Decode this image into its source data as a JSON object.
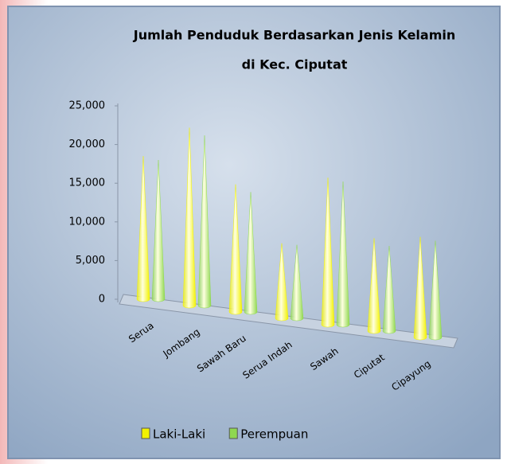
{
  "chart_data": {
    "type": "cone3d",
    "title": [
      "Jumlah Penduduk Berdasarkan  Jenis Kelamin",
      "di Kec. Ciputat"
    ],
    "categories": [
      "Serua",
      "Jombang",
      "Sawah Baru",
      "Serua Indah",
      "Sawah",
      "Ciputat",
      "Cipayung"
    ],
    "series": [
      {
        "name": "Laki-Laki",
        "color": "#f2f200",
        "values": [
          18500,
          23000,
          16500,
          9700,
          19000,
          12000,
          13000
        ]
      },
      {
        "name": "Perempuan",
        "color": "#8fd850",
        "values": [
          18000,
          22000,
          15500,
          9500,
          18500,
          11000,
          12500
        ]
      }
    ],
    "ylim": [
      0,
      25000
    ],
    "yticks": [
      0,
      {
        "value": 5000,
        "label": "5,000"
      },
      {
        "value": 10000,
        "label": "10,000"
      },
      {
        "value": 15000,
        "label": "15,000"
      },
      {
        "value": 20000,
        "label": "20,000"
      },
      {
        "value": 25000,
        "label": "25,000"
      }
    ],
    "legend": "bottom"
  }
}
